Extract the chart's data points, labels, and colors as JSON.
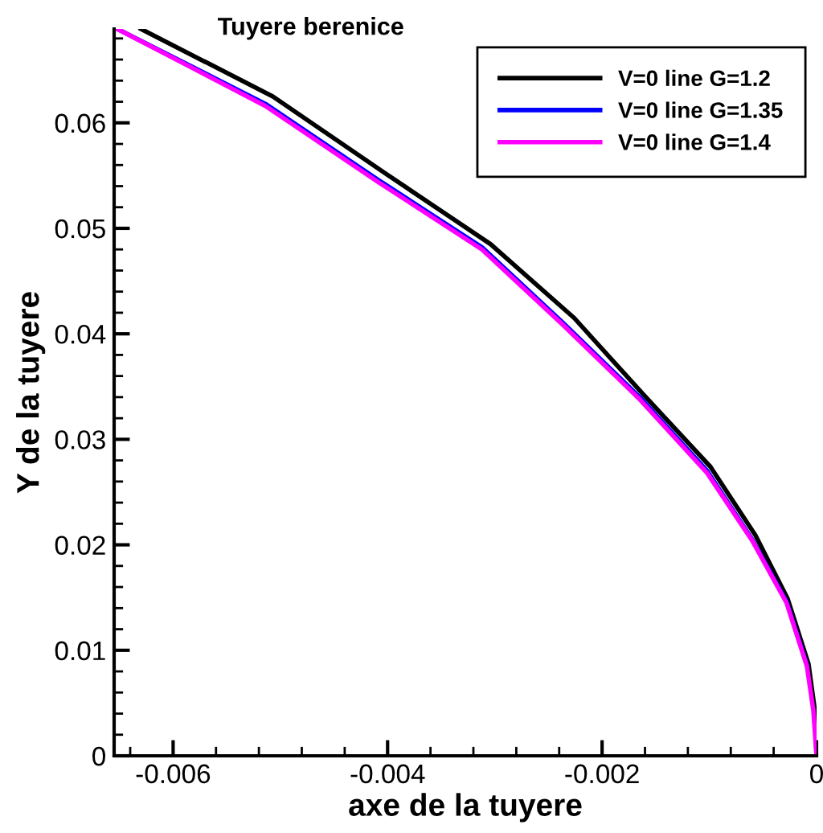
{
  "chart_data": {
    "type": "line",
    "title": "Tuyere berenice",
    "xlabel": "axe de la tuyere",
    "ylabel": "Y de la tuyere",
    "xlim": [
      -0.00655,
      0
    ],
    "ylim": [
      0,
      0.0689
    ],
    "xticks": [
      -0.006,
      -0.004,
      -0.002,
      0
    ],
    "yticks": [
      0,
      0.01,
      0.02,
      0.03,
      0.04,
      0.05,
      0.06
    ],
    "legend": "top right",
    "grid": false,
    "marker": "none",
    "line_style": "solid",
    "series": [
      {
        "name": "V=0 line G=1.2",
        "color": "#000000",
        "x": [
          -0.0063,
          -0.00507,
          -0.00402,
          -0.00304,
          -0.00226,
          -0.00162,
          -0.00099,
          -0.00057,
          -0.00027,
          -7.5e-05,
          -2e-05,
          0
        ],
        "values": [
          0.0689,
          0.0625,
          0.0552,
          0.0485,
          0.0415,
          0.0343,
          0.0274,
          0.0209,
          0.0149,
          0.0087,
          0.0046,
          0
        ]
      },
      {
        "name": "V=0 line G=1.35",
        "color": "#0000ff",
        "x": [
          -0.00652,
          -0.00514,
          -0.00409,
          -0.00312,
          -0.00237,
          -0.00165,
          -0.00102,
          -0.0006,
          -0.00028,
          -9e-05
        ],
        "values": [
          0.0689,
          0.0618,
          0.0546,
          0.0482,
          0.0411,
          0.034,
          0.027,
          0.0205,
          0.0146,
          0.0086
        ]
      },
      {
        "name": "V=0 line G=1.4",
        "color": "#ff00ff",
        "x": [
          -0.00652,
          -0.00514,
          -0.00409,
          -0.00312,
          -0.00237,
          -0.00165,
          -0.00102,
          -0.0006,
          -0.00028,
          -9e-05,
          -3e-05,
          0
        ],
        "values": [
          0.0689,
          0.0616,
          0.0544,
          0.048,
          0.0409,
          0.0338,
          0.0268,
          0.0204,
          0.0145,
          0.0085,
          0.0043,
          0
        ]
      }
    ]
  }
}
